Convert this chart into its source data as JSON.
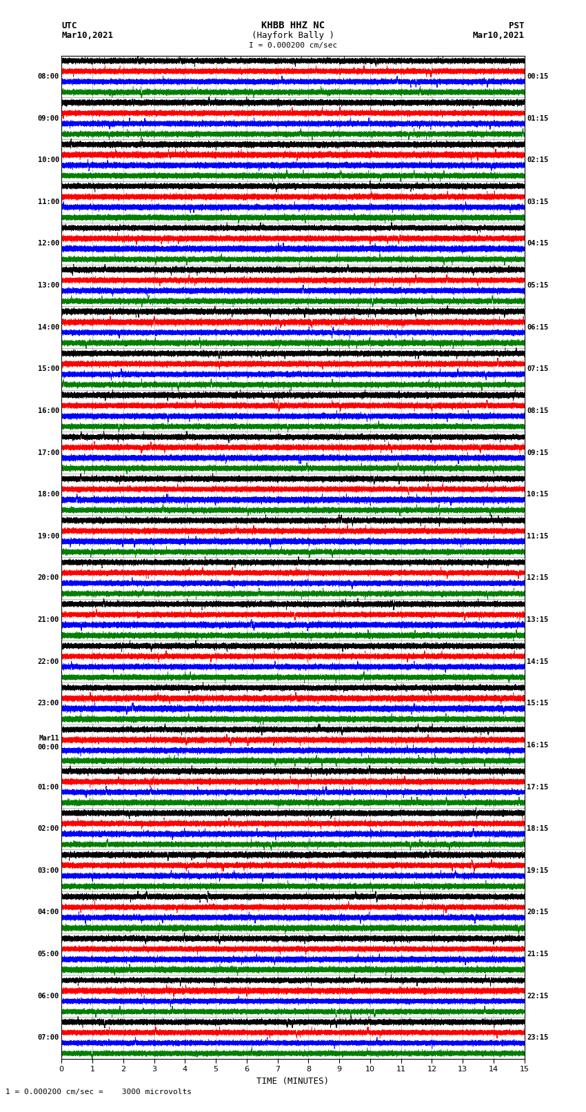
{
  "title_line1": "KHBB HHZ NC",
  "title_line2": "(Hayfork Bally )",
  "title_scale": "I = 0.000200 cm/sec",
  "label_left_top": "UTC",
  "label_left_date": "Mar10,2021",
  "label_right_top": "PST",
  "label_right_date": "Mar10,2021",
  "xlabel": "TIME (MINUTES)",
  "footnote": "1 = 0.000200 cm/sec =    3000 microvolts",
  "left_times": [
    "08:00",
    "09:00",
    "10:00",
    "11:00",
    "12:00",
    "13:00",
    "14:00",
    "15:00",
    "16:00",
    "17:00",
    "18:00",
    "19:00",
    "20:00",
    "21:00",
    "22:00",
    "23:00",
    "Mar11\n00:00",
    "01:00",
    "02:00",
    "03:00",
    "04:00",
    "05:00",
    "06:00",
    "07:00"
  ],
  "right_times": [
    "00:15",
    "01:15",
    "02:15",
    "03:15",
    "04:15",
    "05:15",
    "06:15",
    "07:15",
    "08:15",
    "09:15",
    "10:15",
    "11:15",
    "12:15",
    "13:15",
    "14:15",
    "15:15",
    "16:15",
    "17:15",
    "18:15",
    "19:15",
    "20:15",
    "21:15",
    "22:15",
    "23:15"
  ],
  "num_rows": 24,
  "traces_per_row": 4,
  "trace_colors": [
    "black",
    "red",
    "blue",
    "green"
  ],
  "fig_width": 8.5,
  "fig_height": 16.13,
  "dpi": 100,
  "bg_color": "white",
  "minutes": 15,
  "sample_rate": 50,
  "base_amplitude": 0.28,
  "spike_amplitude": 0.55,
  "grid_color": "#888888",
  "trace_linewidth": 0.35
}
